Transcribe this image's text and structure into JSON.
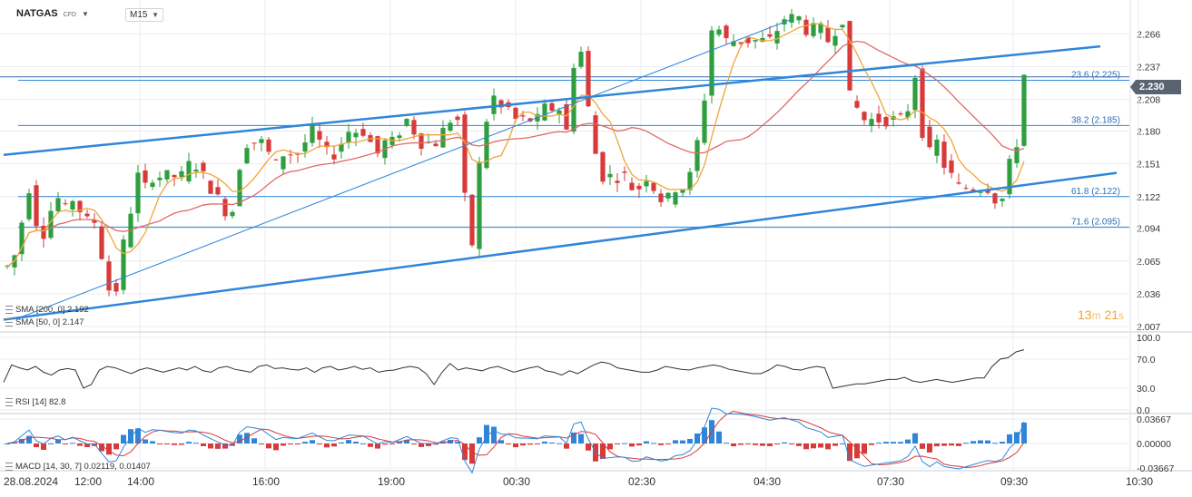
{
  "header": {
    "symbol": "NATGAS",
    "symbol_sub": "CFD",
    "timeframe": "M15"
  },
  "indicators": {
    "sma200": "SMA [200, 0] 2.192",
    "sma50": "SMA [50, 0] 2.147",
    "rsi": "RSI [14] 82.8",
    "macd": "MACD [14, 30, 7] 0.02119, 0.01407"
  },
  "timer": {
    "min": "13",
    "min_unit": "m",
    "sec": "21",
    "sec_unit": "s"
  },
  "last_price": "2.230",
  "colors": {
    "bull": "#2e9e3e",
    "bear": "#d83a3a",
    "sma50": "#f0a53a",
    "sma200": "#e06a6a",
    "trend": "#2f86d9",
    "grid": "#e9ecef",
    "rsi": "#333333",
    "macd_line": "#2f86d9",
    "macd_signal": "#d83a3a"
  },
  "chart_data": {
    "type": "candlestick",
    "instrument": "NATGAS",
    "interval": "M15",
    "price_ticks": [
      "2.266",
      "2.237",
      "2.208",
      "2.180",
      "2.151",
      "2.122",
      "2.094",
      "2.065",
      "2.036",
      "2.007"
    ],
    "price_range": [
      2.007,
      2.28
    ],
    "time_ticks": [
      "28.08.2024",
      "12:00",
      "14:00",
      "16:00",
      "19:00",
      "00:30",
      "02:30",
      "04:30",
      "07:30",
      "09:30",
      "10:30"
    ],
    "fib_levels": [
      {
        "label": "23.6 (2.225)",
        "value": 2.225
      },
      {
        "label": "38.2 (2.185)",
        "value": 2.185
      },
      {
        "label": "61.8 (2.122)",
        "value": 2.122
      },
      {
        "label": "71.6 (2.095)",
        "value": 2.095
      }
    ],
    "resistance_line": 2.228,
    "price_series": [
      2.06,
      2.07,
      2.1,
      2.13,
      2.1,
      2.09,
      2.11,
      2.12,
      2.11,
      2.12,
      2.11,
      2.1,
      2.1,
      2.07,
      2.04,
      2.04,
      2.08,
      2.11,
      2.14,
      2.13,
      2.14,
      2.14,
      2.14,
      2.14,
      2.14,
      2.15,
      2.15,
      2.14,
      2.13,
      2.12,
      2.11,
      2.11,
      2.15,
      2.17,
      2.17,
      2.17,
      2.16,
      2.15,
      2.16,
      2.16,
      2.16,
      2.17,
      2.18,
      2.17,
      2.16,
      2.16,
      2.17,
      2.18,
      2.18,
      2.18,
      2.17,
      2.16,
      2.17,
      2.17,
      2.18,
      2.19,
      2.18,
      2.17,
      2.17,
      2.17,
      2.18,
      2.19,
      2.19,
      2.12,
      2.08,
      2.15,
      2.19,
      2.21,
      2.2,
      2.2,
      2.19,
      2.19,
      2.19,
      2.19,
      2.2,
      2.2,
      2.2,
      2.18,
      2.24,
      2.25,
      2.2,
      2.16,
      2.14,
      2.14,
      2.14,
      2.14,
      2.13,
      2.13,
      2.14,
      2.13,
      2.12,
      2.12,
      2.13,
      2.13,
      2.14,
      2.17,
      2.21,
      2.27,
      2.27,
      2.26,
      2.26,
      2.26,
      2.26,
      2.26,
      2.26,
      2.26,
      2.27,
      2.28,
      2.28,
      2.28,
      2.27,
      2.27,
      2.27,
      2.26,
      2.27,
      2.28,
      2.21,
      2.2,
      2.19,
      2.19,
      2.19,
      2.19,
      2.19,
      2.19,
      2.2,
      2.23,
      2.18,
      2.16,
      2.17,
      2.15,
      2.14,
      2.13,
      2.13,
      2.13,
      2.13,
      2.13,
      2.12,
      2.12,
      2.15,
      2.17,
      2.23
    ],
    "sma50_range": [
      2.108,
      2.266
    ],
    "rsi": {
      "ticks": [
        "100.0",
        "70.0",
        "30.0",
        "0.0"
      ],
      "last": 82.8,
      "values": [
        38,
        62,
        58,
        55,
        60,
        52,
        48,
        55,
        57,
        55,
        30,
        35,
        55,
        60,
        58,
        54,
        50,
        55,
        58,
        55,
        52,
        55,
        58,
        55,
        60,
        54,
        52,
        58,
        60,
        56,
        54,
        52,
        60,
        62,
        57,
        58,
        56,
        55,
        58,
        52,
        58,
        60,
        55,
        57,
        60,
        56,
        58,
        52,
        54,
        55,
        58,
        60,
        58,
        50,
        35,
        52,
        64,
        55,
        58,
        56,
        54,
        58,
        60,
        56,
        52,
        55,
        58,
        60,
        54,
        52,
        48,
        54,
        50,
        56,
        62,
        66,
        64,
        58,
        56,
        54,
        52,
        52,
        55,
        60,
        58,
        56,
        55,
        58,
        60,
        62,
        60,
        56,
        54,
        52,
        50,
        50,
        55,
        62,
        60,
        56,
        55,
        58,
        60,
        58,
        30,
        32,
        34,
        36,
        36,
        38,
        40,
        42,
        42,
        45,
        40,
        38,
        40,
        42,
        40,
        38,
        40,
        42,
        44,
        44,
        60,
        70,
        72,
        80,
        83
      ]
    },
    "macd": {
      "ticks": [
        "0.03667",
        "0.00000",
        "-0.03667"
      ],
      "line": 0.02119,
      "signal": 0.01407
    },
    "subpanels": [
      "RSI",
      "MACD"
    ]
  }
}
